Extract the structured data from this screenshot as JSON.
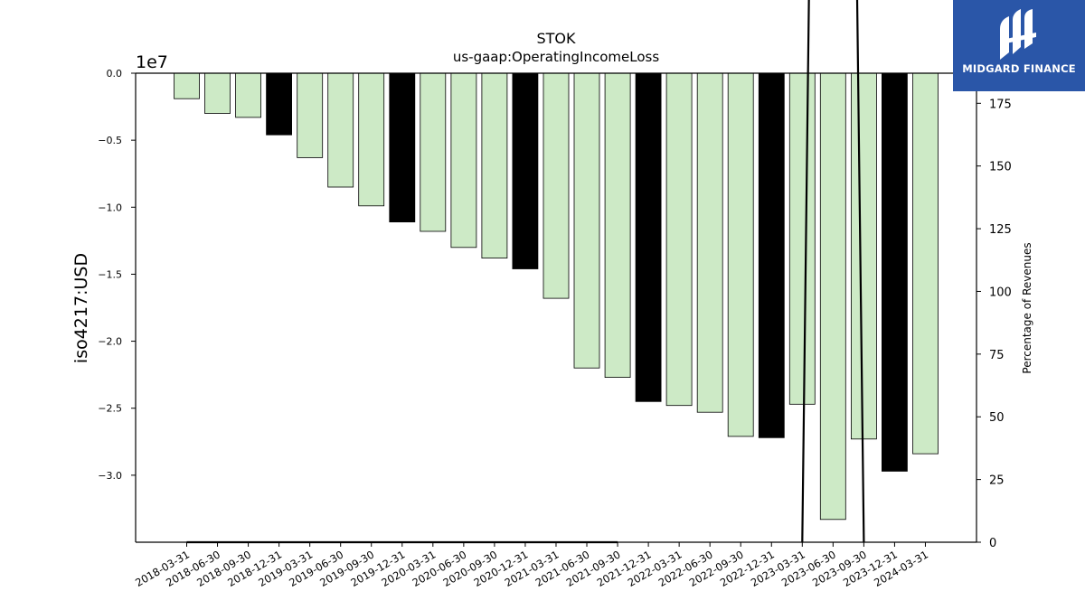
{
  "chart_data": {
    "type": "bar",
    "title": "STOK",
    "subtitle": "us-gaap:OperatingIncomeLoss",
    "ylabel": "iso4217:USD",
    "y2label": "Percentage of Revenues",
    "y_offset_label": "1e7",
    "y_scale": 10000000,
    "ylim": [
      -35000000,
      0
    ],
    "y2lim": [
      0,
      187
    ],
    "yticks": [
      "0.0",
      "−0.5",
      "−1.0",
      "−1.5",
      "−2.0",
      "−2.5",
      "−3.0"
    ],
    "ytick_values": [
      0,
      -5000000,
      -10000000,
      -15000000,
      -20000000,
      -25000000,
      -30000000
    ],
    "y2ticks": [
      "0",
      "25",
      "50",
      "75",
      "100",
      "125",
      "150",
      "175"
    ],
    "y2tick_values": [
      0,
      25,
      50,
      75,
      100,
      125,
      150,
      175
    ],
    "categories": [
      "2018-03-31",
      "2018-06-30",
      "2018-09-30",
      "2018-12-31",
      "2019-03-31",
      "2019-06-30",
      "2019-09-30",
      "2019-12-31",
      "2020-03-31",
      "2020-06-30",
      "2020-09-30",
      "2020-12-31",
      "2021-03-31",
      "2021-06-30",
      "2021-09-30",
      "2021-12-31",
      "2022-03-31",
      "2022-06-30",
      "2022-09-30",
      "2022-12-31",
      "2023-03-31",
      "2023-06-30",
      "2023-09-30",
      "2023-12-31",
      "2024-03-31"
    ],
    "values": [
      -1900000,
      -3000000,
      -3300000,
      -4600000,
      -6300000,
      -8500000,
      -9900000,
      -11100000,
      -11800000,
      -13000000,
      -13800000,
      -14600000,
      -16800000,
      -22000000,
      -22700000,
      -24500000,
      -24800000,
      -25300000,
      -27100000,
      -27200000,
      -24700000,
      -33300000,
      -27300000,
      -29700000,
      -28400000
    ],
    "annual": [
      false,
      false,
      false,
      true,
      false,
      false,
      false,
      true,
      false,
      false,
      false,
      true,
      false,
      false,
      false,
      true,
      false,
      false,
      false,
      true,
      false,
      false,
      false,
      true,
      false
    ],
    "colors": {
      "quarterly": "#cdeac6",
      "annual": "#000000",
      "edge": "#000000",
      "line": "#000000"
    },
    "percent_line": [
      0,
      0,
      0,
      0,
      0,
      0,
      0,
      0,
      0,
      0,
      0,
      0,
      0,
      0,
      0,
      null,
      null,
      null,
      null,
      null,
      0,
      1000,
      0,
      null,
      null
    ]
  },
  "brand": {
    "name": "MIDGARD FINANCE",
    "logo_icon": "midgard-logo-icon"
  }
}
